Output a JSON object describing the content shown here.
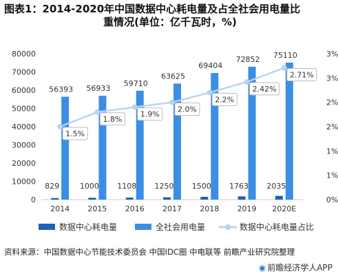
{
  "title": {
    "line1": "图表1：2014-2020年中国数据中心耗电量及占全社会用电量比",
    "line2": "重情况(单位：亿千瓦时，%)"
  },
  "source": "资料来源：中国数据中心节能技术委员会 中国IDC圈 中电联等 前瞻产业研究院整理",
  "brand": {
    "logo_icon": "brand-logo-icon",
    "text": "前瞻经济学人APP"
  },
  "chart_data": {
    "type": "bar",
    "categories": [
      "2014",
      "2015",
      "2016",
      "2017",
      "2018",
      "2019",
      "2020E"
    ],
    "series": [
      {
        "name": "数据中心耗电量",
        "kind": "bar",
        "axis": "left",
        "color": "#1f5fb8",
        "values": [
          829,
          1000,
          1108,
          1250,
          1500,
          1763,
          2035
        ]
      },
      {
        "name": "全社会用电量",
        "kind": "bar",
        "axis": "left",
        "color": "#3a8ee6",
        "values": [
          56393,
          56933,
          59710,
          63625,
          69404,
          72852,
          75110
        ]
      },
      {
        "name": "数据中心耗电量占比",
        "kind": "line",
        "axis": "right",
        "color": "#b8d4f0",
        "values": [
          1.5,
          1.8,
          1.9,
          2.0,
          2.2,
          2.42,
          2.71
        ],
        "labels": [
          "1.5%",
          "1.8%",
          "1.9%",
          "2.0%",
          "2.2%",
          "2.42%",
          "2.71%"
        ]
      }
    ],
    "y_left": {
      "lim": [
        0,
        80000
      ],
      "ticks": [
        0,
        10000,
        20000,
        30000,
        40000,
        50000,
        60000,
        70000,
        80000
      ]
    },
    "y_right": {
      "lim": [
        0,
        3
      ],
      "ticks": [
        "0%",
        "1%",
        "1%",
        "2%",
        "2%",
        "3%",
        "3%"
      ],
      "tick_values": [
        0,
        0.5,
        1,
        1.5,
        2,
        2.5,
        3
      ]
    },
    "grid": false,
    "legend": "bottom"
  }
}
